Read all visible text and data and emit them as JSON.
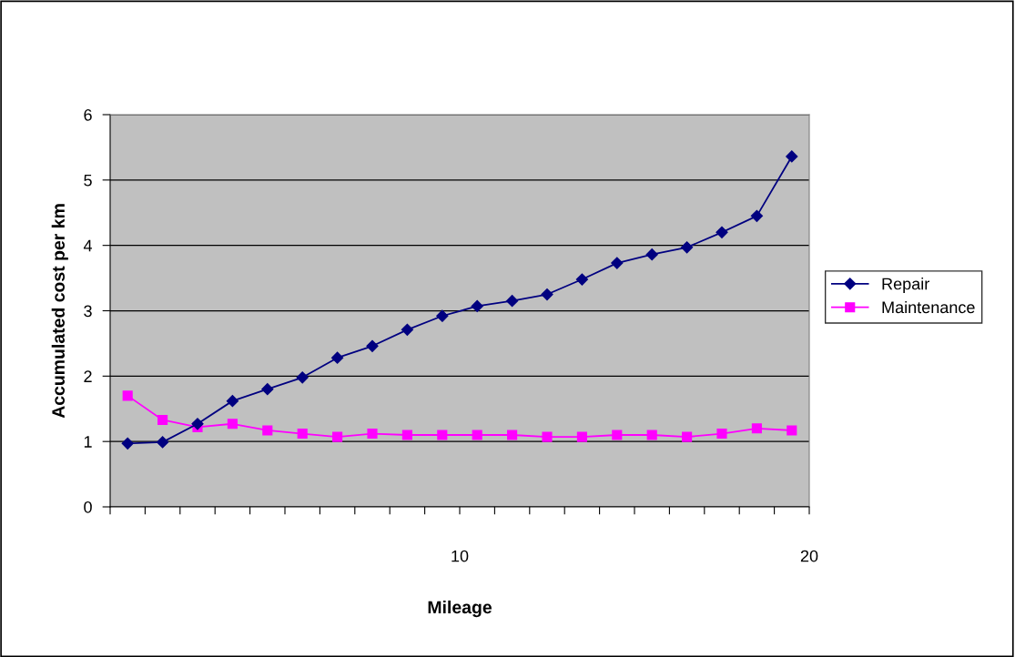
{
  "chart_data": {
    "type": "line",
    "xlabel": "Mileage",
    "ylabel": "Accumulated cost per km",
    "x": [
      0.5,
      1.5,
      2.5,
      3.5,
      4.5,
      5.5,
      6.5,
      7.5,
      8.5,
      9.5,
      10.5,
      11.5,
      12.5,
      13.5,
      14.5,
      15.5,
      16.5,
      17.5,
      18.5,
      19.5
    ],
    "series": [
      {
        "name": "Repair",
        "color": "#000080",
        "marker": "diamond",
        "values": [
          0.97,
          0.99,
          1.27,
          1.62,
          1.8,
          1.98,
          2.28,
          2.46,
          2.71,
          2.92,
          3.07,
          3.15,
          3.25,
          3.48,
          3.73,
          3.86,
          3.97,
          4.2,
          4.45,
          5.36
        ]
      },
      {
        "name": "Maintenance",
        "color": "#ff00ff",
        "marker": "square",
        "values": [
          1.7,
          1.33,
          1.22,
          1.27,
          1.17,
          1.12,
          1.07,
          1.12,
          1.1,
          1.1,
          1.1,
          1.1,
          1.07,
          1.07,
          1.1,
          1.1,
          1.07,
          1.12,
          1.2,
          1.17
        ]
      }
    ],
    "xlim": [
      0,
      20
    ],
    "xticks": [
      {
        "value": 0,
        "label": null
      },
      {
        "value": 1,
        "label": null
      },
      {
        "value": 2,
        "label": null
      },
      {
        "value": 3,
        "label": null
      },
      {
        "value": 4,
        "label": null
      },
      {
        "value": 5,
        "label": null
      },
      {
        "value": 6,
        "label": null
      },
      {
        "value": 7,
        "label": null
      },
      {
        "value": 8,
        "label": null
      },
      {
        "value": 9,
        "label": null
      },
      10,
      {
        "value": 11,
        "label": null
      },
      {
        "value": 12,
        "label": null
      },
      {
        "value": 13,
        "label": null
      },
      {
        "value": 14,
        "label": null
      },
      {
        "value": 15,
        "label": null
      },
      {
        "value": 16,
        "label": null
      },
      {
        "value": 17,
        "label": null
      },
      {
        "value": 18,
        "label": null
      },
      {
        "value": 19,
        "label": null
      },
      20
    ],
    "ylim": [
      0,
      6
    ],
    "yticks": [
      0,
      1,
      2,
      3,
      4,
      5,
      6
    ],
    "grid": "y",
    "legend": "right",
    "line_style": "solid"
  }
}
